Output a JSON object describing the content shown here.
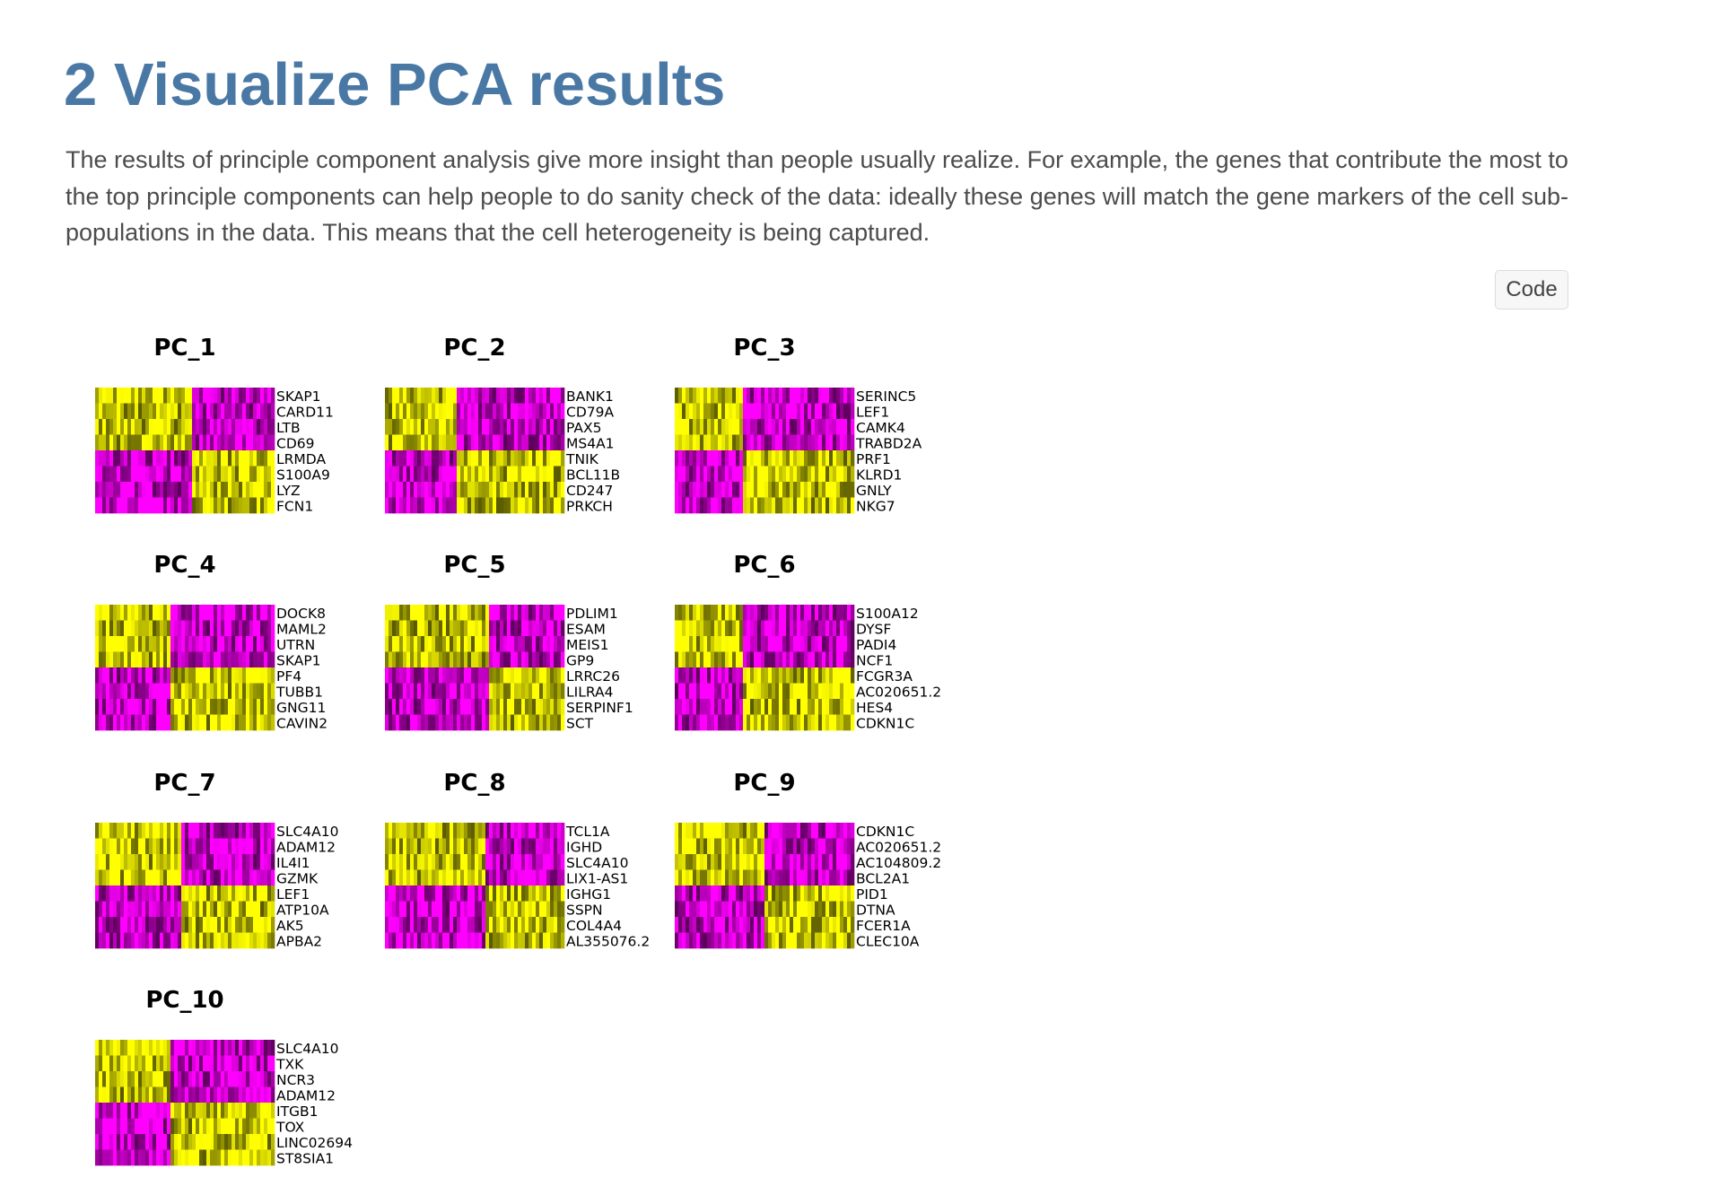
{
  "page": {
    "title": "2 Visualize PCA results",
    "description": "The results of principle component analysis give more insight than people usually realize. For example, the genes that contribute the most to the top principle components can help people to do sanity check of the data: ideally these genes will match the gene markers of the cell sub-populations in the data. This means that the cell heterogeneity is being captured.",
    "code_button": "Code"
  },
  "chart_data": {
    "type": "heatmap",
    "colors": {
      "low": "#ff00ff",
      "mid": "#000000",
      "high": "#ffff00"
    },
    "panels": [
      {
        "title": "PC_1",
        "genes": [
          "SKAP1",
          "CARD11",
          "LTB",
          "CD69",
          "LRMDA",
          "S100A9",
          "LYZ",
          "FCN1"
        ],
        "row_pattern": [
          -1,
          -1,
          -1,
          -1,
          1,
          1,
          1,
          1
        ]
      },
      {
        "title": "PC_2",
        "genes": [
          "BANK1",
          "CD79A",
          "PAX5",
          "MS4A1",
          "TNIK",
          "BCL11B",
          "CD247",
          "PRKCH"
        ],
        "row_pattern": [
          -1,
          -1,
          -1,
          -1,
          1,
          1,
          1,
          1
        ]
      },
      {
        "title": "PC_3",
        "genes": [
          "SERINC5",
          "LEF1",
          "CAMK4",
          "TRABD2A",
          "PRF1",
          "KLRD1",
          "GNLY",
          "NKG7"
        ],
        "row_pattern": [
          -1,
          -1,
          -1,
          -1,
          1,
          1,
          1,
          1
        ]
      },
      {
        "title": "PC_4",
        "genes": [
          "DOCK8",
          "MAML2",
          "UTRN",
          "SKAP1",
          "PF4",
          "TUBB1",
          "GNG11",
          "CAVIN2"
        ],
        "row_pattern": [
          -1,
          -1,
          -1,
          -1,
          1,
          1,
          1,
          1
        ]
      },
      {
        "title": "PC_5",
        "genes": [
          "PDLIM1",
          "ESAM",
          "MEIS1",
          "GP9",
          "LRRC26",
          "LILRA4",
          "SERPINF1",
          "SCT"
        ],
        "row_pattern": [
          -1,
          -1,
          -1,
          -1,
          1,
          1,
          1,
          1
        ]
      },
      {
        "title": "PC_6",
        "genes": [
          "S100A12",
          "DYSF",
          "PADI4",
          "NCF1",
          "FCGR3A",
          "AC020651.2",
          "HES4",
          "CDKN1C"
        ],
        "row_pattern": [
          -1,
          -1,
          -1,
          -1,
          1,
          1,
          1,
          1
        ]
      },
      {
        "title": "PC_7",
        "genes": [
          "SLC4A10",
          "ADAM12",
          "IL4I1",
          "GZMK",
          "LEF1",
          "ATP10A",
          "AK5",
          "APBA2"
        ],
        "row_pattern": [
          -1,
          -1,
          -1,
          -1,
          1,
          1,
          1,
          1
        ]
      },
      {
        "title": "PC_8",
        "genes": [
          "TCL1A",
          "IGHD",
          "SLC4A10",
          "LIX1-AS1",
          "IGHG1",
          "SSPN",
          "COL4A4",
          "AL355076.2"
        ],
        "row_pattern": [
          -1,
          -1,
          -1,
          -1,
          1,
          1,
          1,
          1
        ]
      },
      {
        "title": "PC_9",
        "genes": [
          "CDKN1C",
          "AC020651.2",
          "AC104809.2",
          "BCL2A1",
          "PID1",
          "DTNA",
          "FCER1A",
          "CLEC10A"
        ],
        "row_pattern": [
          -1,
          -1,
          -1,
          -1,
          1,
          1,
          1,
          1
        ]
      },
      {
        "title": "PC_10",
        "genes": [
          "SLC4A10",
          "TXK",
          "NCR3",
          "ADAM12",
          "ITGB1",
          "TOX",
          "LINC02694",
          "ST8SIA1"
        ],
        "row_pattern": [
          -1,
          -1,
          -1,
          -1,
          1,
          1,
          1,
          1
        ]
      }
    ]
  }
}
